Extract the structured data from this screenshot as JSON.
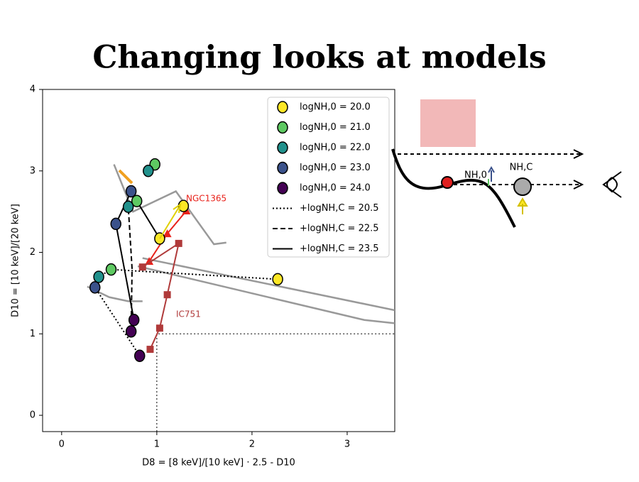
{
  "title": "Changing looks at models",
  "chart_data": {
    "type": "scatter",
    "x_label": "D8 = [8 keV]/[10 keV] · 2.5 - D10",
    "y_label": "D10 = [10 keV]/[20 keV]",
    "xlim": [
      -0.2,
      3.5
    ],
    "ylim": [
      -0.2,
      4
    ],
    "xticks": [
      0,
      1,
      2,
      3
    ],
    "yticks": [
      0,
      1,
      2,
      3,
      4
    ],
    "legend": "upper right",
    "series": [
      {
        "name": "logNH,0 = 20.0",
        "color": "#fde725",
        "marker": "circle",
        "x": [
          2.27,
          1.03,
          1.28
        ],
        "values": [
          1.67,
          2.17,
          2.57
        ]
      },
      {
        "name": "logNH,0 = 21.0",
        "color": "#5ec962",
        "marker": "circle",
        "x": [
          0.52,
          0.79,
          0.98
        ],
        "values": [
          1.79,
          2.63,
          3.08
        ]
      },
      {
        "name": "logNH,0 = 22.0",
        "color": "#21918c",
        "marker": "circle",
        "x": [
          0.39,
          0.7,
          0.91
        ],
        "values": [
          1.7,
          2.56,
          3.0
        ]
      },
      {
        "name": "logNH,0 = 23.0",
        "color": "#3b528b",
        "marker": "circle",
        "x": [
          0.35,
          0.57,
          0.73
        ],
        "values": [
          1.57,
          2.35,
          2.75
        ]
      },
      {
        "name": "logNH,0 = 24.0",
        "color": "#440154",
        "marker": "circle",
        "x": [
          0.82,
          0.73,
          0.76
        ],
        "values": [
          0.73,
          1.03,
          1.17
        ]
      },
      {
        "name": "+logNH,C = 20.5",
        "color": "#000000",
        "line": "dotted",
        "x": [
          0.82,
          0.35,
          0.39,
          0.52,
          2.27
        ],
        "values": [
          0.73,
          1.57,
          1.7,
          1.79,
          1.67
        ]
      },
      {
        "name": "+logNH,C = 22.5",
        "color": "#000000",
        "line": "dashed",
        "x": [
          0.73,
          0.74,
          0.7,
          0.79
        ],
        "values": [
          1.03,
          1.8,
          2.56,
          2.63
        ]
      },
      {
        "name": "+logNH,C = 23.5",
        "color": "#000000",
        "line": "solid",
        "x": [
          0.76,
          0.57,
          0.73,
          0.79,
          1.03
        ],
        "values": [
          1.17,
          2.35,
          2.75,
          2.63,
          2.17
        ]
      }
    ],
    "observations": [
      {
        "name": "NGC1365",
        "color": "#e8221b",
        "marker": "triangle",
        "x": [
          0.92,
          1.11,
          1.31
        ],
        "values": [
          1.89,
          2.23,
          2.51
        ]
      },
      {
        "name": "IC751",
        "color": "#b03a3a",
        "marker": "square",
        "x": [
          0.85,
          1.23,
          1.11,
          1.03,
          0.93
        ],
        "values": [
          1.82,
          2.11,
          1.48,
          1.07,
          0.81
        ]
      }
    ],
    "tracks": {
      "color": "#999999",
      "x": [
        0.55,
        0.75,
        1.2,
        1.6,
        1.73,
        null,
        0.85,
        3.5,
        null,
        0.8,
        3.18,
        3.5,
        null,
        0.27,
        0.5,
        0.7,
        0.85
      ],
      "values": [
        3.08,
        2.5,
        2.75,
        2.1,
        2.12,
        null,
        1.93,
        1.29,
        null,
        1.83,
        1.17,
        1.13,
        null,
        1.58,
        1.45,
        1.4,
        1.4
      ]
    },
    "reference": {
      "x": 1,
      "y": 1
    }
  },
  "diagram": {
    "labels": [
      "NH,0",
      "NH,C"
    ]
  }
}
